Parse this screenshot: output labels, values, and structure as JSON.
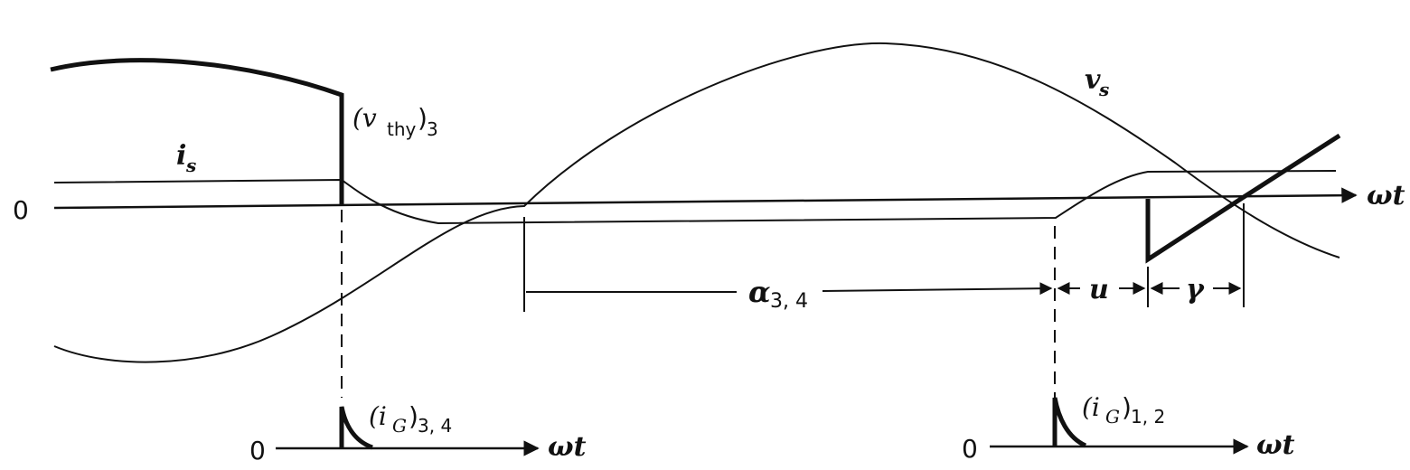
{
  "labels": {
    "vs": "v",
    "vs_sub": "s",
    "is": "i",
    "is_sub": "s",
    "vthy": "(v",
    "vthy_sub": "thy",
    "vthy_close": ")",
    "vthy_idx": "3",
    "zero_main": "0",
    "omega_t_main": "ωt",
    "alpha": "α",
    "alpha_sub": "3, 4",
    "u": "u",
    "gamma": "γ",
    "ig34_open": "(i",
    "ig34_sub": "G",
    "ig34_close": ")",
    "ig34_idx": "3, 4",
    "ig12_open": "(i",
    "ig12_sub": "G",
    "ig12_close": ")",
    "ig12_idx": "1, 2",
    "zero_left": "0",
    "omega_t_left": "ωt",
    "zero_right": "0",
    "omega_t_right": "ωt"
  },
  "colors": {
    "ink": "#111111",
    "background": "#ffffff"
  }
}
